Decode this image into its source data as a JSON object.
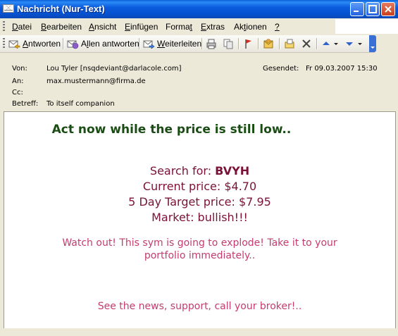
{
  "window": {
    "title": "Nachricht (Nur-Text)"
  },
  "menu": {
    "items": [
      {
        "u": "D",
        "rest": "atei"
      },
      {
        "u": "B",
        "rest": "earbeiten"
      },
      {
        "u": "A",
        "rest": "nsicht"
      },
      {
        "u": "E",
        "rest": "infügen"
      },
      {
        "pre": "Forma",
        "u": "t",
        "rest": ""
      },
      {
        "u": "E",
        "rest": "xtras"
      },
      {
        "pre": "Ak",
        "u": "t",
        "rest": "ionen"
      },
      {
        "u": "?",
        "rest": ""
      }
    ]
  },
  "toolbar": {
    "reply": {
      "u": "A",
      "rest": "ntworten"
    },
    "reply_all": {
      "pre": "A",
      "u": "l",
      "rest": "len antworten"
    },
    "forward": {
      "u": "W",
      "rest": "eiterleiten"
    }
  },
  "header": {
    "from_label": "Von:",
    "from_value": "Lou Tyler [nsqdeviant@darlacole.com]",
    "sent_label": "Gesendet:",
    "sent_value": "Fr 09.03.2007 15:30",
    "to_label": "An:",
    "to_value": "max.mustermann@firma.de",
    "cc_label": "Cc:",
    "subject_label": "Betreff:",
    "subject_value": "To itself companion"
  },
  "message": {
    "headline": "Act now while the price is still low..",
    "search_prefix": "Search for: ",
    "symbol": "BVYH",
    "current_price": "Current price: $4.70",
    "target_price": "5 Day Target price: $7.95",
    "market": "Market: bullish!!!",
    "warn_line1": "Watch out! This sym is going to explode! Take it to your",
    "warn_line2": "portfolio immediately..",
    "footer": "See the news, support, call your broker!.."
  }
}
